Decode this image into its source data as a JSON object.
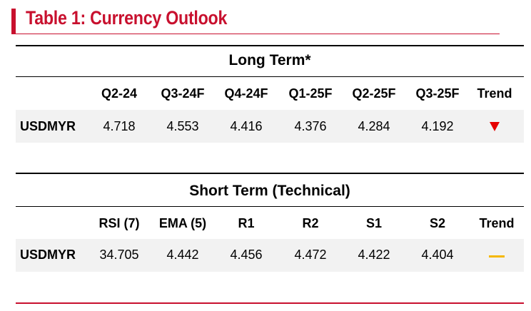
{
  "title": "Table 1: Currency Outlook",
  "long_term": {
    "heading": "Long Term*",
    "columns": [
      "Q2-24",
      "Q3-24F",
      "Q4-24F",
      "Q1-25F",
      "Q2-25F",
      "Q3-25F",
      "Trend"
    ],
    "row": {
      "label": "USDMYR",
      "values": [
        "4.718",
        "4.553",
        "4.416",
        "4.376",
        "4.284",
        "4.192"
      ],
      "trend_icon": "down-triangle-red",
      "trend_color": "#e60000"
    }
  },
  "short_term": {
    "heading": "Short Term (Technical)",
    "columns": [
      "RSI (7)",
      "EMA (5)",
      "R1",
      "R2",
      "S1",
      "S2",
      "Trend"
    ],
    "row": {
      "label": "USDMYR",
      "values": [
        "34.705",
        "4.442",
        "4.456",
        "4.472",
        "4.422",
        "4.404"
      ],
      "trend_icon": "flat-dash-yellow",
      "trend_color": "#f5b800"
    }
  },
  "colors": {
    "accent": "#c8102e",
    "row_background": "#f2f2f2"
  }
}
